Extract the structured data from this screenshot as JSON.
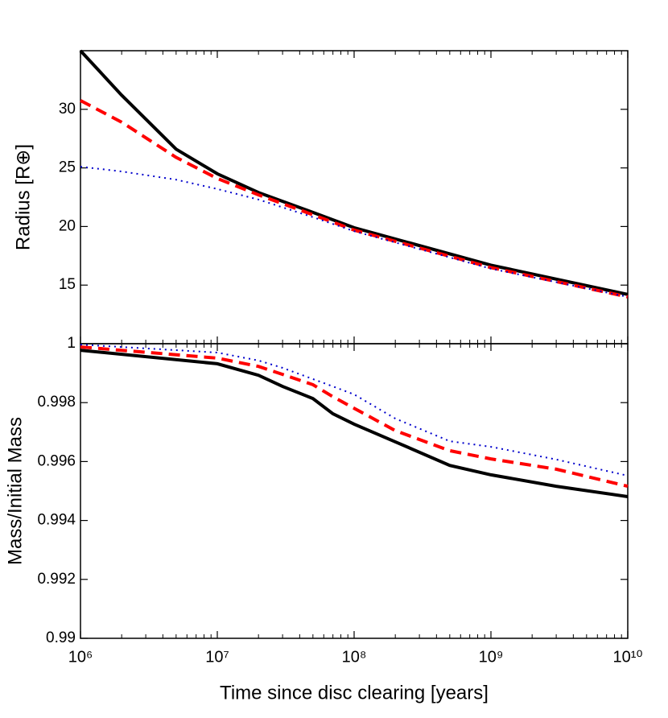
{
  "chart_data": [
    {
      "type": "line",
      "ylabel": "Radius [R⊕]",
      "xscale": "log",
      "xlim": [
        1000000,
        10000000000
      ],
      "xticks": [
        1000000,
        10000000,
        100000000,
        1000000000,
        10000000000
      ],
      "ylim": [
        10,
        35
      ],
      "yticks": [
        15,
        20,
        25,
        30
      ],
      "x": [
        1000000,
        2000000,
        5000000,
        10000000,
        20000000,
        50000000,
        100000000,
        1000000000,
        10000000000
      ],
      "series": [
        {
          "color": "#000000",
          "style": "solid",
          "values": [
            35,
            31.2,
            26.6,
            24.5,
            22.9,
            21.2,
            19.9,
            16.7,
            14.2
          ]
        },
        {
          "color": "#ff0000",
          "style": "dashed",
          "values": [
            30.75,
            28.9,
            25.9,
            24.1,
            22.7,
            21.0,
            19.7,
            16.5,
            14.0
          ]
        },
        {
          "color": "#0000cc",
          "style": "dotted",
          "values": [
            25.1,
            24.7,
            24.0,
            23.2,
            22.3,
            20.8,
            19.6,
            16.4,
            14.0
          ]
        }
      ]
    },
    {
      "type": "line",
      "ylabel": "Mass/Initial Mass",
      "xlabel": "Time since disc clearing [years]",
      "xscale": "log",
      "xlim": [
        1000000,
        10000000000
      ],
      "xticks": [
        {
          "value": 1000000,
          "label": "10⁶"
        },
        {
          "value": 10000000,
          "label": "10⁷"
        },
        {
          "value": 100000000,
          "label": "10⁸"
        },
        {
          "value": 1000000000,
          "label": "10⁹"
        },
        {
          "value": 10000000000,
          "label": "10¹⁰"
        }
      ],
      "ylim": [
        0.99,
        1
      ],
      "yticks": [
        0.99,
        0.992,
        0.994,
        0.996,
        0.998,
        1
      ],
      "x": [
        1000000,
        10000000,
        20000000,
        30000000,
        50000000,
        70000000,
        100000000,
        200000000,
        500000000,
        1000000000,
        3000000000,
        10000000000
      ],
      "series": [
        {
          "color": "#000000",
          "style": "solid",
          "values": [
            0.99978,
            0.99932,
            0.99893,
            0.99855,
            0.99814,
            0.99762,
            0.99727,
            0.99667,
            0.99587,
            0.99555,
            0.99516,
            0.99481
          ]
        },
        {
          "color": "#ff0000",
          "style": "dashed",
          "values": [
            0.99989,
            0.99951,
            0.99923,
            0.99896,
            0.99861,
            0.9982,
            0.99781,
            0.99705,
            0.99637,
            0.99609,
            0.99574,
            0.99516
          ]
        },
        {
          "color": "#0000cc",
          "style": "dotted",
          "values": [
            0.99997,
            0.9997,
            0.99943,
            0.99918,
            0.9988,
            0.99855,
            0.99828,
            0.99746,
            0.99669,
            0.9965,
            0.99607,
            0.99552
          ]
        }
      ]
    }
  ]
}
